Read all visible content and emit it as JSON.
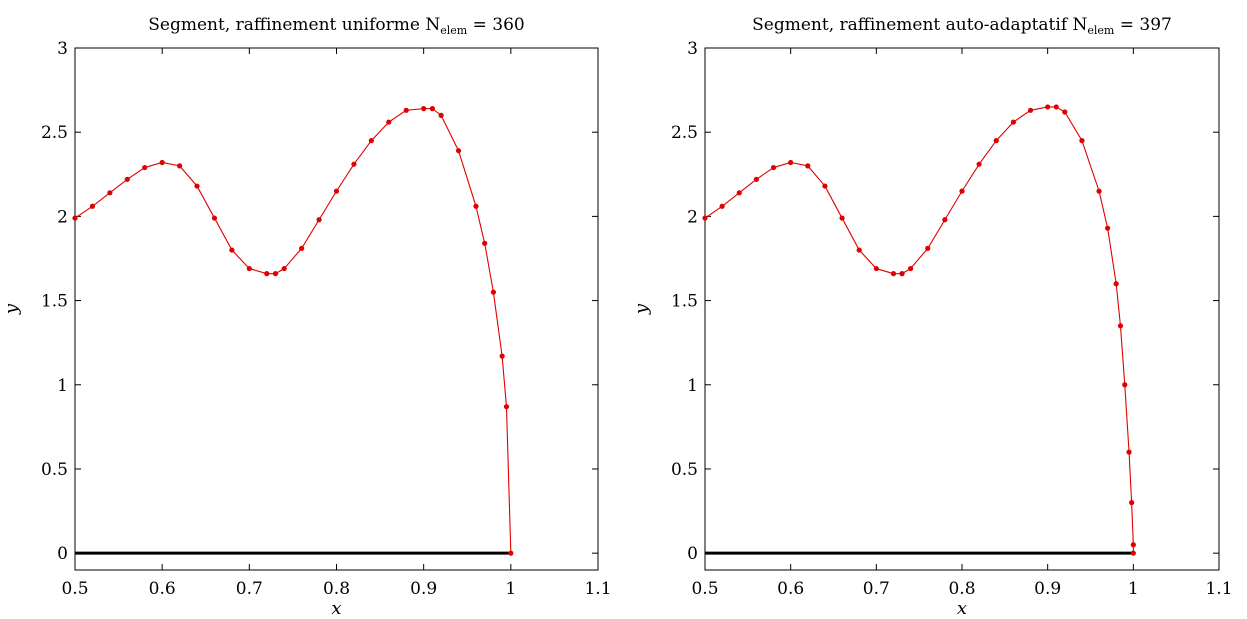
{
  "chart_data": [
    {
      "type": "line",
      "title": "Segment, raffinement uniforme N",
      "title_sub": "elem",
      "title_tail": " = 360",
      "xlabel": "x",
      "ylabel": "y",
      "xlim": [
        0.5,
        1.1
      ],
      "ylim": [
        -0.1,
        3
      ],
      "xticks": [
        0.5,
        0.6,
        0.7,
        0.8,
        0.9,
        1,
        1.1
      ],
      "xtick_labels": [
        "0.5",
        "0.6",
        "0.7",
        "0.8",
        "0.9",
        "1",
        "1.1"
      ],
      "yticks": [
        0,
        0.5,
        1,
        1.5,
        2,
        2.5,
        3
      ],
      "ytick_labels": [
        "0",
        "0.5",
        "1",
        "1.5",
        "2",
        "2.5",
        "3"
      ],
      "series": [
        {
          "color": "#e00000",
          "marker": "dot",
          "x": [
            0.5,
            0.52,
            0.54,
            0.56,
            0.58,
            0.6,
            0.62,
            0.64,
            0.66,
            0.68,
            0.7,
            0.72,
            0.73,
            0.74,
            0.76,
            0.78,
            0.8,
            0.82,
            0.84,
            0.86,
            0.88,
            0.9,
            0.91,
            0.92,
            0.94,
            0.96,
            0.97,
            0.98,
            0.99,
            0.995,
            1.0
          ],
          "y": [
            1.99,
            2.06,
            2.14,
            2.22,
            2.29,
            2.32,
            2.3,
            2.18,
            1.99,
            1.8,
            1.69,
            1.66,
            1.66,
            1.69,
            1.81,
            1.98,
            2.15,
            2.31,
            2.45,
            2.56,
            2.63,
            2.64,
            2.64,
            2.6,
            2.39,
            2.06,
            1.84,
            1.55,
            1.17,
            0.87,
            0.0
          ]
        }
      ],
      "baseline": {
        "x": [
          0.5,
          1.0
        ],
        "y": [
          0,
          0
        ],
        "color": "#000000"
      }
    },
    {
      "type": "line",
      "title": "Segment, raffinement auto-adaptatif N",
      "title_sub": "elem",
      "title_tail": " = 397",
      "xlabel": "x",
      "ylabel": "y",
      "xlim": [
        0.5,
        1.1
      ],
      "ylim": [
        -0.1,
        3
      ],
      "xticks": [
        0.5,
        0.6,
        0.7,
        0.8,
        0.9,
        1,
        1.1
      ],
      "xtick_labels": [
        "0.5",
        "0.6",
        "0.7",
        "0.8",
        "0.9",
        "1",
        "1.1"
      ],
      "yticks": [
        0,
        0.5,
        1,
        1.5,
        2,
        2.5,
        3
      ],
      "ytick_labels": [
        "0",
        "0.5",
        "1",
        "1.5",
        "2",
        "2.5",
        "3"
      ],
      "series": [
        {
          "color": "#e00000",
          "marker": "dot",
          "x": [
            0.5,
            0.52,
            0.54,
            0.56,
            0.58,
            0.6,
            0.62,
            0.64,
            0.66,
            0.68,
            0.7,
            0.72,
            0.73,
            0.74,
            0.76,
            0.78,
            0.8,
            0.82,
            0.84,
            0.86,
            0.88,
            0.9,
            0.91,
            0.92,
            0.94,
            0.96,
            0.97,
            0.98,
            0.985,
            0.99,
            0.995,
            0.998,
            1.0,
            1.0
          ],
          "y": [
            1.99,
            2.06,
            2.14,
            2.22,
            2.29,
            2.32,
            2.3,
            2.18,
            1.99,
            1.8,
            1.69,
            1.66,
            1.66,
            1.69,
            1.81,
            1.98,
            2.15,
            2.31,
            2.45,
            2.56,
            2.63,
            2.65,
            2.65,
            2.62,
            2.45,
            2.15,
            1.93,
            1.6,
            1.35,
            1.0,
            0.6,
            0.3,
            0.05,
            0.0
          ]
        }
      ],
      "baseline": {
        "x": [
          0.5,
          1.0
        ],
        "y": [
          0,
          0
        ],
        "color": "#000000"
      }
    }
  ]
}
